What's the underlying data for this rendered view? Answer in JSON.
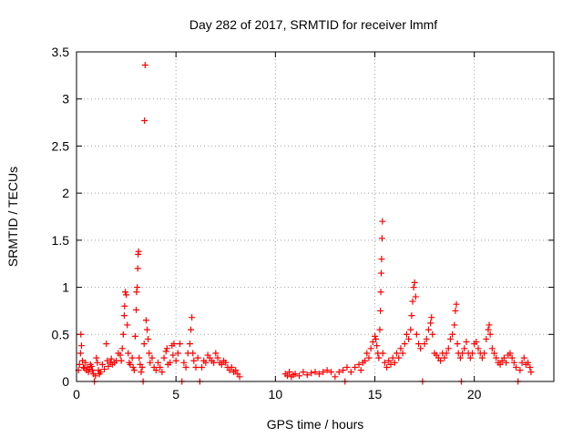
{
  "chart_data": {
    "type": "scatter",
    "title": "Day 282 of 2017, SRMTID for receiver lmmf",
    "xlabel": "GPS time / hours",
    "ylabel": "SRMTID / TECUs",
    "xlim": [
      0,
      24
    ],
    "ylim": [
      0,
      3.5
    ],
    "xticks": [
      0,
      5,
      10,
      15,
      20
    ],
    "yticks": [
      0,
      0.5,
      1,
      1.5,
      2,
      2.5,
      3,
      3.5
    ],
    "ytick_labels": [
      "0",
      "0.5",
      "1",
      "1.5",
      "2",
      "2.5",
      "3",
      "3.5"
    ],
    "grid": true,
    "marker": "+",
    "color": "#ff0000",
    "series": [
      {
        "name": "SRMTID",
        "points": [
          [
            0.1,
            0.12
          ],
          [
            0.15,
            0.18
          ],
          [
            0.2,
            0.3
          ],
          [
            0.22,
            0.5
          ],
          [
            0.25,
            0.38
          ],
          [
            0.3,
            0.22
          ],
          [
            0.35,
            0.15
          ],
          [
            0.4,
            0.14
          ],
          [
            0.45,
            0.2
          ],
          [
            0.5,
            0.12
          ],
          [
            0.55,
            0.15
          ],
          [
            0.6,
            0.1
          ],
          [
            0.65,
            0.13
          ],
          [
            0.7,
            0.18
          ],
          [
            0.75,
            0.16
          ],
          [
            0.8,
            0.12
          ],
          [
            0.85,
            0.08
          ],
          [
            0.9,
            0.0
          ],
          [
            0.95,
            0.06
          ],
          [
            1.0,
            0.25
          ],
          [
            1.05,
            0.2
          ],
          [
            1.1,
            0.12
          ],
          [
            1.15,
            0.08
          ],
          [
            1.2,
            0.1
          ],
          [
            1.3,
            0.18
          ],
          [
            1.4,
            0.13
          ],
          [
            1.5,
            0.4
          ],
          [
            1.55,
            0.22
          ],
          [
            1.6,
            0.16
          ],
          [
            1.7,
            0.2
          ],
          [
            1.75,
            0.24
          ],
          [
            1.8,
            0.18
          ],
          [
            1.9,
            0.2
          ],
          [
            2.0,
            0.22
          ],
          [
            2.1,
            0.3
          ],
          [
            2.2,
            0.28
          ],
          [
            2.25,
            0.22
          ],
          [
            2.3,
            0.35
          ],
          [
            2.35,
            0.5
          ],
          [
            2.4,
            0.7
          ],
          [
            2.42,
            0.8
          ],
          [
            2.45,
            0.95
          ],
          [
            2.5,
            0.92
          ],
          [
            2.55,
            0.6
          ],
          [
            2.6,
            0.3
          ],
          [
            2.65,
            0.2
          ],
          [
            2.7,
            0.18
          ],
          [
            2.8,
            0.25
          ],
          [
            2.85,
            0.15
          ],
          [
            2.9,
            0.12
          ],
          [
            2.95,
            0.48
          ],
          [
            3.0,
            0.76
          ],
          [
            3.02,
            0.95
          ],
          [
            3.05,
            1.0
          ],
          [
            3.08,
            1.2
          ],
          [
            3.1,
            1.35
          ],
          [
            3.12,
            1.38
          ],
          [
            3.15,
            0.25
          ],
          [
            3.2,
            0.18
          ],
          [
            3.25,
            0.1
          ],
          [
            3.3,
            0.15
          ],
          [
            3.35,
            0.0
          ],
          [
            3.4,
            0.4
          ],
          [
            3.42,
            2.77
          ],
          [
            3.45,
            3.36
          ],
          [
            3.5,
            0.65
          ],
          [
            3.55,
            0.55
          ],
          [
            3.6,
            0.45
          ],
          [
            3.65,
            0.3
          ],
          [
            3.7,
            0.2
          ],
          [
            3.8,
            0.25
          ],
          [
            3.9,
            0.15
          ],
          [
            4.0,
            0.12
          ],
          [
            4.1,
            0.2
          ],
          [
            4.2,
            0.15
          ],
          [
            4.3,
            0.1
          ],
          [
            4.4,
            0.25
          ],
          [
            4.5,
            0.32
          ],
          [
            4.55,
            0.35
          ],
          [
            4.6,
            0.18
          ],
          [
            4.7,
            0.2
          ],
          [
            4.8,
            0.38
          ],
          [
            4.85,
            0.28
          ],
          [
            4.9,
            0.4
          ],
          [
            5.0,
            0.22
          ],
          [
            5.1,
            0.3
          ],
          [
            5.2,
            0.4
          ],
          [
            5.3,
            0.0
          ],
          [
            5.4,
            0.2
          ],
          [
            5.5,
            0.15
          ],
          [
            5.6,
            0.3
          ],
          [
            5.7,
            0.4
          ],
          [
            5.75,
            0.55
          ],
          [
            5.8,
            0.68
          ],
          [
            5.85,
            0.3
          ],
          [
            5.9,
            0.22
          ],
          [
            6.0,
            0.15
          ],
          [
            6.1,
            0.25
          ],
          [
            6.2,
            0.0
          ],
          [
            6.3,
            0.15
          ],
          [
            6.4,
            0.22
          ],
          [
            6.5,
            0.2
          ],
          [
            6.6,
            0.28
          ],
          [
            6.7,
            0.25
          ],
          [
            6.8,
            0.22
          ],
          [
            6.9,
            0.2
          ],
          [
            7.0,
            0.3
          ],
          [
            7.1,
            0.25
          ],
          [
            7.2,
            0.2
          ],
          [
            7.3,
            0.18
          ],
          [
            7.4,
            0.22
          ],
          [
            7.5,
            0.2
          ],
          [
            7.6,
            0.15
          ],
          [
            7.7,
            0.12
          ],
          [
            7.8,
            0.15
          ],
          [
            7.9,
            0.1
          ],
          [
            8.0,
            0.12
          ],
          [
            8.1,
            0.08
          ],
          [
            8.2,
            0.05
          ],
          [
            10.5,
            0.08
          ],
          [
            10.6,
            0.06
          ],
          [
            10.7,
            0.1
          ],
          [
            10.8,
            0.05
          ],
          [
            10.9,
            0.07
          ],
          [
            11.0,
            0.08
          ],
          [
            11.2,
            0.06
          ],
          [
            11.4,
            0.1
          ],
          [
            11.6,
            0.07
          ],
          [
            11.8,
            0.09
          ],
          [
            12.0,
            0.1
          ],
          [
            12.2,
            0.08
          ],
          [
            12.4,
            0.1
          ],
          [
            12.6,
            0.12
          ],
          [
            12.8,
            0.1
          ],
          [
            13.0,
            0.05
          ],
          [
            13.2,
            0.1
          ],
          [
            13.4,
            0.12
          ],
          [
            13.5,
            0.0
          ],
          [
            13.6,
            0.15
          ],
          [
            13.8,
            0.1
          ],
          [
            14.0,
            0.15
          ],
          [
            14.2,
            0.18
          ],
          [
            14.3,
            0.12
          ],
          [
            14.4,
            0.2
          ],
          [
            14.5,
            0.22
          ],
          [
            14.6,
            0.3
          ],
          [
            14.7,
            0.25
          ],
          [
            14.8,
            0.35
          ],
          [
            14.9,
            0.42
          ],
          [
            15.0,
            0.48
          ],
          [
            15.05,
            0.45
          ],
          [
            15.1,
            0.38
          ],
          [
            15.15,
            0.3
          ],
          [
            15.2,
            0.25
          ],
          [
            15.25,
            0.55
          ],
          [
            15.28,
            0.75
          ],
          [
            15.3,
            0.95
          ],
          [
            15.32,
            1.15
          ],
          [
            15.34,
            1.3
          ],
          [
            15.36,
            1.52
          ],
          [
            15.38,
            1.7
          ],
          [
            15.4,
            0.3
          ],
          [
            15.5,
            0.2
          ],
          [
            15.6,
            0.15
          ],
          [
            15.7,
            0.22
          ],
          [
            15.8,
            0.18
          ],
          [
            15.9,
            0.25
          ],
          [
            16.0,
            0.2
          ],
          [
            16.1,
            0.3
          ],
          [
            16.2,
            0.25
          ],
          [
            16.3,
            0.35
          ],
          [
            16.4,
            0.3
          ],
          [
            16.5,
            0.4
          ],
          [
            16.6,
            0.5
          ],
          [
            16.7,
            0.45
          ],
          [
            16.8,
            0.55
          ],
          [
            16.85,
            0.7
          ],
          [
            16.9,
            0.85
          ],
          [
            16.95,
            1.0
          ],
          [
            17.0,
            1.05
          ],
          [
            17.05,
            0.9
          ],
          [
            17.1,
            0.5
          ],
          [
            17.2,
            0.4
          ],
          [
            17.3,
            0.35
          ],
          [
            17.4,
            0.0
          ],
          [
            17.5,
            0.4
          ],
          [
            17.6,
            0.45
          ],
          [
            17.7,
            0.55
          ],
          [
            17.8,
            0.62
          ],
          [
            17.85,
            0.68
          ],
          [
            17.9,
            0.5
          ],
          [
            18.0,
            0.3
          ],
          [
            18.1,
            0.28
          ],
          [
            18.2,
            0.25
          ],
          [
            18.3,
            0.22
          ],
          [
            18.4,
            0.3
          ],
          [
            18.5,
            0.25
          ],
          [
            18.6,
            0.3
          ],
          [
            18.7,
            0.35
          ],
          [
            18.8,
            0.45
          ],
          [
            18.9,
            0.5
          ],
          [
            19.0,
            0.6
          ],
          [
            19.05,
            0.75
          ],
          [
            19.1,
            0.82
          ],
          [
            19.15,
            0.4
          ],
          [
            19.2,
            0.3
          ],
          [
            19.3,
            0.25
          ],
          [
            19.35,
            0.0
          ],
          [
            19.4,
            0.3
          ],
          [
            19.5,
            0.35
          ],
          [
            19.6,
            0.42
          ],
          [
            19.7,
            0.3
          ],
          [
            19.8,
            0.25
          ],
          [
            19.9,
            0.3
          ],
          [
            20.0,
            0.4
          ],
          [
            20.1,
            0.42
          ],
          [
            20.2,
            0.35
          ],
          [
            20.3,
            0.3
          ],
          [
            20.4,
            0.25
          ],
          [
            20.5,
            0.3
          ],
          [
            20.6,
            0.45
          ],
          [
            20.7,
            0.55
          ],
          [
            20.75,
            0.6
          ],
          [
            20.8,
            0.5
          ],
          [
            20.9,
            0.35
          ],
          [
            21.0,
            0.3
          ],
          [
            21.1,
            0.25
          ],
          [
            21.2,
            0.2
          ],
          [
            21.3,
            0.18
          ],
          [
            21.4,
            0.22
          ],
          [
            21.5,
            0.25
          ],
          [
            21.6,
            0.2
          ],
          [
            21.7,
            0.28
          ],
          [
            21.8,
            0.3
          ],
          [
            21.9,
            0.25
          ],
          [
            22.0,
            0.2
          ],
          [
            22.1,
            0.15
          ],
          [
            22.2,
            0.0
          ],
          [
            22.3,
            0.12
          ],
          [
            22.4,
            0.2
          ],
          [
            22.5,
            0.25
          ],
          [
            22.6,
            0.18
          ],
          [
            22.7,
            0.2
          ],
          [
            22.8,
            0.15
          ],
          [
            22.85,
            0.1
          ]
        ]
      }
    ]
  }
}
